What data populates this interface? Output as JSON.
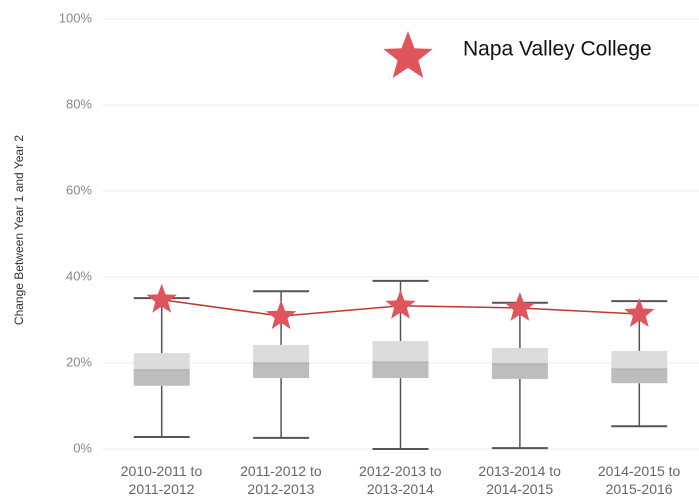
{
  "chart_data": {
    "type": "box",
    "y_label": "Change Between Year 1 and Year 2",
    "categories": [
      "2010-2011 to 2011-2012",
      "2011-2012 to 2012-2013",
      "2012-2013 to 2013-2014",
      "2013-2014 to 2014-2015",
      "2014-2015 to 2015-2016"
    ],
    "boxes": [
      {
        "min": 2.8,
        "q1": 14.7,
        "median": 18.4,
        "q3": 22.3,
        "max": 35.1
      },
      {
        "min": 2.6,
        "q1": 16.5,
        "median": 20.0,
        "q3": 24.2,
        "max": 36.7
      },
      {
        "min": 0,
        "q1": 16.5,
        "median": 20.2,
        "q3": 25.1,
        "max": 39.1
      },
      {
        "min": 0.2,
        "q1": 16.3,
        "median": 19.8,
        "q3": 23.5,
        "max": 34.0
      },
      {
        "min": 5.3,
        "q1": 15.3,
        "median": 18.6,
        "q3": 22.8,
        "max": 34.4
      }
    ],
    "box_colors": [
      "#bdbdbd",
      "#dcdcdc"
    ],
    "whisker_color": "#555555",
    "series": [
      {
        "name": "Napa Valley College",
        "color": "#e0555c",
        "line_color": "#c0392b",
        "values": [
          34.7,
          30.9,
          33.3,
          32.8,
          31.4
        ]
      }
    ],
    "ylim": [
      0,
      100
    ],
    "yticks": [
      {
        "value": 0,
        "label": "0%"
      },
      {
        "value": 20,
        "label": "20%"
      },
      {
        "value": 40,
        "label": "40%"
      },
      {
        "value": 60,
        "label": "60%"
      },
      {
        "value": 80,
        "label": "80%"
      },
      {
        "value": 100,
        "label": "100%"
      }
    ],
    "grid": true
  }
}
